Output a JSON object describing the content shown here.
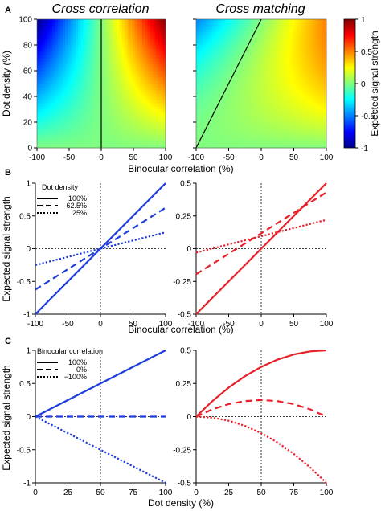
{
  "figure": {
    "panel_labels": [
      "A",
      "B",
      "C"
    ],
    "titles": {
      "left": {
        "text": "Cross correlation",
        "color": "#1f3cdc"
      },
      "right": {
        "text": "Cross matching",
        "color": "#e8202a"
      }
    },
    "colorbar": {
      "label": "Expected signal strength",
      "ticks": [
        "1",
        "0.5",
        "0",
        "-0.5",
        "-1"
      ],
      "colormap": "jet"
    },
    "legend_b": {
      "title": "Dot density",
      "entries": [
        "100%",
        "62.5%",
        "25%"
      ]
    },
    "legend_c": {
      "title": "Binocular correlation",
      "entries": [
        "100%",
        "0%",
        "−100%"
      ]
    }
  },
  "colors": {
    "blue": "#1f3cdc",
    "red": "#e8202a"
  },
  "chart_data": [
    {
      "id": "A-left",
      "type": "heatmap",
      "title": "Cross correlation",
      "xlabel": "Binocular correlation (%)",
      "ylabel": "Dot density (%)",
      "xlim": [
        -100,
        100
      ],
      "ylim": [
        0,
        100
      ],
      "xticks": [
        -100,
        -50,
        0,
        50,
        100
      ],
      "yticks": [
        0,
        20,
        40,
        60,
        80,
        100
      ],
      "clim": [
        -1,
        1
      ],
      "function": "signal = correlation/100 * density/100",
      "contour_zero_x": [
        [
          0,
          0
        ],
        [
          0,
          100
        ]
      ]
    },
    {
      "id": "A-right",
      "type": "heatmap",
      "title": "Cross matching",
      "xlabel": "Binocular correlation (%)",
      "ylabel": "",
      "xlim": [
        -100,
        100
      ],
      "ylim": [
        0,
        100
      ],
      "xticks": [
        -100,
        -50,
        0,
        50,
        100
      ],
      "yticks": [
        0,
        20,
        40,
        60,
        80,
        100
      ],
      "clim": [
        -1,
        1
      ],
      "function": "signal = d*(1+c)/2 - d^2/2, with c = correlation/100, d = density/100",
      "contour_zero_x": [
        [
          -100,
          0
        ],
        [
          0,
          100
        ]
      ]
    },
    {
      "id": "B-left",
      "type": "line",
      "xlabel": "Binocular correlation (%)",
      "ylabel": "Expected signal strength",
      "x": [
        -100,
        100
      ],
      "xlim": [
        -100,
        100
      ],
      "ylim": [
        -1,
        1
      ],
      "xticks": [
        "-100",
        "-50",
        "0",
        "50",
        "100"
      ],
      "yticks": [
        "-1",
        "-0.5",
        "0",
        "0.5",
        "1"
      ],
      "series": [
        {
          "name": "100%",
          "style": "solid",
          "values": [
            -1,
            1
          ]
        },
        {
          "name": "62.5%",
          "style": "dashed",
          "values": [
            -0.625,
            0.625
          ]
        },
        {
          "name": "25%",
          "style": "dotted",
          "values": [
            -0.25,
            0.25
          ]
        }
      ]
    },
    {
      "id": "B-right",
      "type": "line",
      "xlabel": "Binocular correlation (%)",
      "ylabel": "",
      "x": [
        -100,
        100
      ],
      "xlim": [
        -100,
        100
      ],
      "ylim": [
        -0.5,
        0.5
      ],
      "xticks": [
        "-100",
        "-50",
        "0",
        "50",
        "100"
      ],
      "yticks": [
        "-0.5",
        "-0.25",
        "0",
        "0.25",
        "0.5"
      ],
      "series": [
        {
          "name": "100%",
          "style": "solid",
          "values": [
            -0.5,
            0.5
          ]
        },
        {
          "name": "62.5%",
          "style": "dashed",
          "values": [
            -0.195,
            0.43
          ]
        },
        {
          "name": "25%",
          "style": "dotted",
          "values": [
            -0.03,
            0.22
          ]
        }
      ]
    },
    {
      "id": "C-left",
      "type": "line",
      "xlabel": "Dot density (%)",
      "ylabel": "Expected signal strength",
      "x": [
        0,
        25,
        50,
        75,
        100
      ],
      "xlim": [
        0,
        100
      ],
      "ylim": [
        -1,
        1
      ],
      "xticks": [
        "0",
        "25",
        "50",
        "75",
        "100"
      ],
      "yticks": [
        "-1",
        "-0.5",
        "0",
        "0.5",
        "1"
      ],
      "series": [
        {
          "name": "100%",
          "style": "solid",
          "values": [
            0,
            0.25,
            0.5,
            0.75,
            1
          ]
        },
        {
          "name": "0%",
          "style": "dashed",
          "values": [
            0,
            0,
            0,
            0,
            0
          ]
        },
        {
          "name": "−100%",
          "style": "dotted",
          "values": [
            0,
            -0.25,
            -0.5,
            -0.75,
            -1
          ]
        }
      ]
    },
    {
      "id": "C-right",
      "type": "line",
      "xlabel": "Dot density (%)",
      "ylabel": "",
      "x": [
        0,
        12.5,
        25,
        37.5,
        50,
        62.5,
        75,
        87.5,
        100
      ],
      "xlim": [
        0,
        100
      ],
      "ylim": [
        -0.5,
        0.5
      ],
      "xticks": [
        "0",
        "25",
        "50",
        "75",
        "100"
      ],
      "yticks": [
        "-0.5",
        "-0.25",
        "0",
        "0.25",
        "0.5"
      ],
      "series": [
        {
          "name": "100%",
          "style": "solid",
          "values": [
            0,
            0.117,
            0.219,
            0.305,
            0.375,
            0.43,
            0.469,
            0.492,
            0.5
          ]
        },
        {
          "name": "0%",
          "style": "dashed",
          "values": [
            0,
            0.055,
            0.094,
            0.117,
            0.125,
            0.117,
            0.094,
            0.055,
            0
          ]
        },
        {
          "name": "−100%",
          "style": "dotted",
          "values": [
            0,
            -0.008,
            -0.031,
            -0.07,
            -0.125,
            -0.195,
            -0.281,
            -0.383,
            -0.5
          ]
        }
      ]
    }
  ]
}
